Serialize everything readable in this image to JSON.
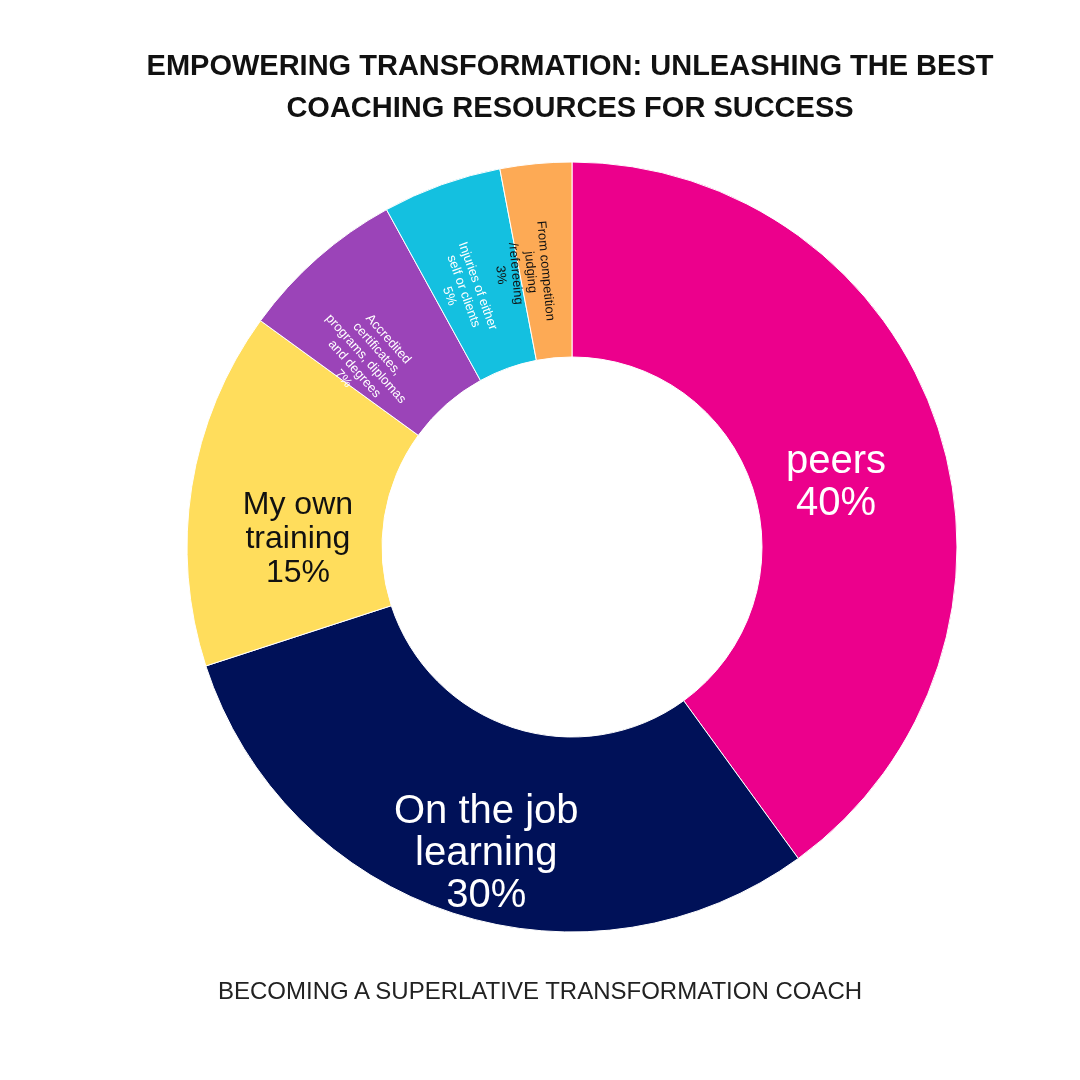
{
  "chart_data": {
    "type": "donut",
    "title": "EMPOWERING TRANSFORMATION: UNLEASHING THE BEST COACHING RESOURCES FOR SUCCESS",
    "categories": [
      "peers",
      "On the job learning",
      "My own training",
      "Accredited certificates, programs, diplomas and degrees",
      "Injuries of either self or clients",
      "From competition judging /refereeing"
    ],
    "values": [
      40,
      30,
      15,
      7,
      5,
      3
    ],
    "colors": [
      "#ec008c",
      "#001158",
      "#ffdd5c",
      "#9b44b8",
      "#14c0e0",
      "#fdaa55"
    ],
    "value_labels": [
      "40%",
      "30%",
      "15%",
      "7%",
      "5%",
      "3%"
    ],
    "annotations": [
      "BECOMING A SUPERLATIVE TRANSFORMATION COACH"
    ]
  }
}
